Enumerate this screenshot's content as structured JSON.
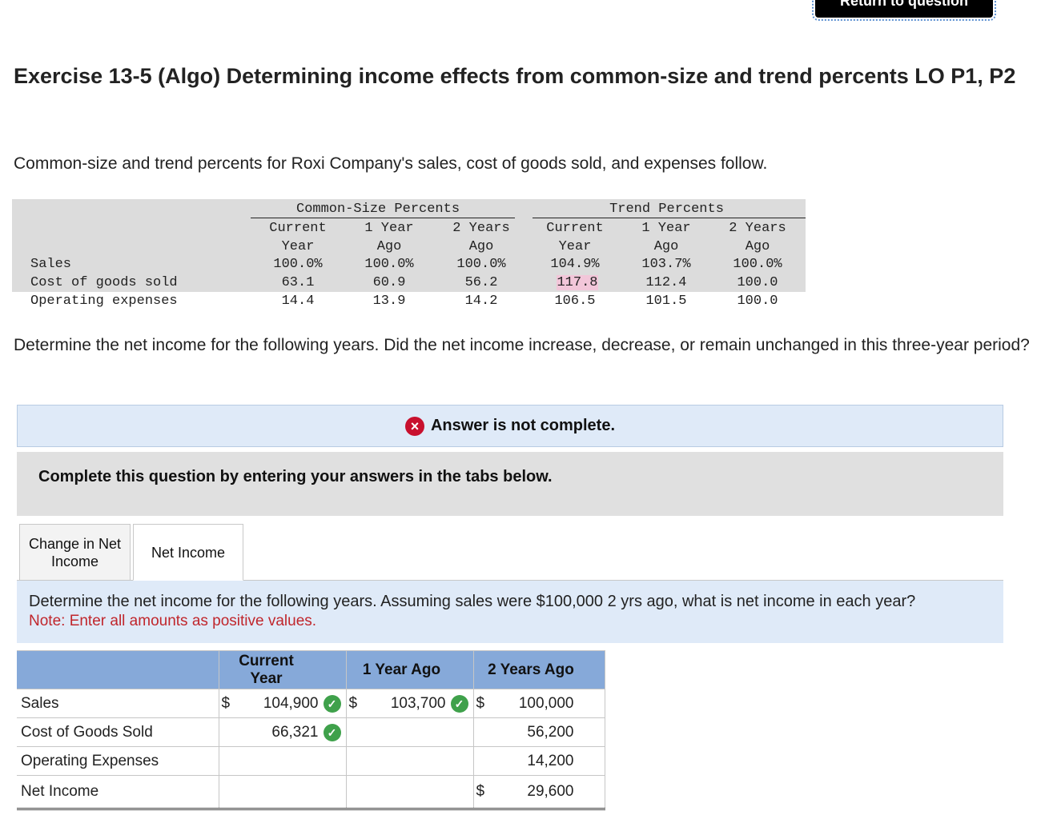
{
  "header": {
    "return_button": "Return to question",
    "title": "Exercise 13-5 (Algo) Determining income effects from common-size and trend percents LO P1, P2",
    "intro": "Common-size and trend percents for Roxi Company's sales, cost of goods sold, and expenses follow."
  },
  "data_table": {
    "group_common": "Common-Size Percents",
    "group_trend": "Trend Percents",
    "columns": [
      {
        "l1": "Current",
        "l2": "Year"
      },
      {
        "l1": "1 Year",
        "l2": "Ago"
      },
      {
        "l1": "2 Years",
        "l2": "Ago"
      },
      {
        "l1": "Current",
        "l2": "Year"
      },
      {
        "l1": "1 Year",
        "l2": "Ago"
      },
      {
        "l1": "2 Years",
        "l2": "Ago"
      }
    ],
    "rows": [
      {
        "label": "Sales",
        "values": [
          "100.0%",
          "100.0%",
          "100.0%",
          "104.9%",
          "103.7%",
          "100.0%"
        ]
      },
      {
        "label": "Cost of goods sold",
        "values": [
          "63.1",
          "60.9",
          "56.2",
          "117.8",
          "112.4",
          "100.0"
        ]
      },
      {
        "label": "Operating expenses",
        "values": [
          "14.4",
          "13.9",
          "14.2",
          "106.5",
          "101.5",
          "100.0"
        ]
      }
    ]
  },
  "question": "Determine the net income for the following years. Did the net income increase, decrease, or remain unchanged in this three-year period?",
  "status": {
    "icon": "x-circle-icon",
    "text": "Answer is not complete.",
    "icon_color": "#c8102e"
  },
  "instruction": "Complete this question by entering your answers in the tabs below.",
  "tabs": [
    {
      "label": "Change in Net Income",
      "active": false
    },
    {
      "label": "Net Income",
      "active": true
    }
  ],
  "prompt": {
    "text": "Determine the net income for the following years. Assuming sales were $100,000 2 yrs ago, what is net income in each year?",
    "note": "Note: Enter all amounts as positive values."
  },
  "answer_table": {
    "headers": [
      "Current Year",
      "1 Year Ago",
      "2 Years Ago"
    ],
    "rows": [
      {
        "label": "Sales",
        "cells": [
          {
            "dollar": "$",
            "value": "104,900",
            "correct": true
          },
          {
            "dollar": "$",
            "value": "103,700",
            "correct": true
          },
          {
            "dollar": "$",
            "value": "100,000",
            "correct": false
          }
        ]
      },
      {
        "label": "Cost of Goods Sold",
        "cells": [
          {
            "dollar": "",
            "value": "66,321",
            "correct": true
          },
          {
            "dollar": "",
            "value": "",
            "correct": false
          },
          {
            "dollar": "",
            "value": "56,200",
            "correct": false
          }
        ]
      },
      {
        "label": "Operating Expenses",
        "cells": [
          {
            "dollar": "",
            "value": "",
            "correct": false
          },
          {
            "dollar": "",
            "value": "",
            "correct": false
          },
          {
            "dollar": "",
            "value": "14,200",
            "correct": false
          }
        ]
      },
      {
        "label": "Net Income",
        "cells": [
          {
            "dollar": "",
            "value": "",
            "correct": false
          },
          {
            "dollar": "",
            "value": "",
            "correct": false
          },
          {
            "dollar": "$",
            "value": "29,600",
            "correct": false
          }
        ]
      }
    ]
  },
  "colors": {
    "header_blue": "#86a9d9",
    "panel_blue": "#dfeaf8",
    "check_green": "#3fa14b",
    "note_red": "#c0262c",
    "highlight_pink": "#f2c6d9"
  }
}
